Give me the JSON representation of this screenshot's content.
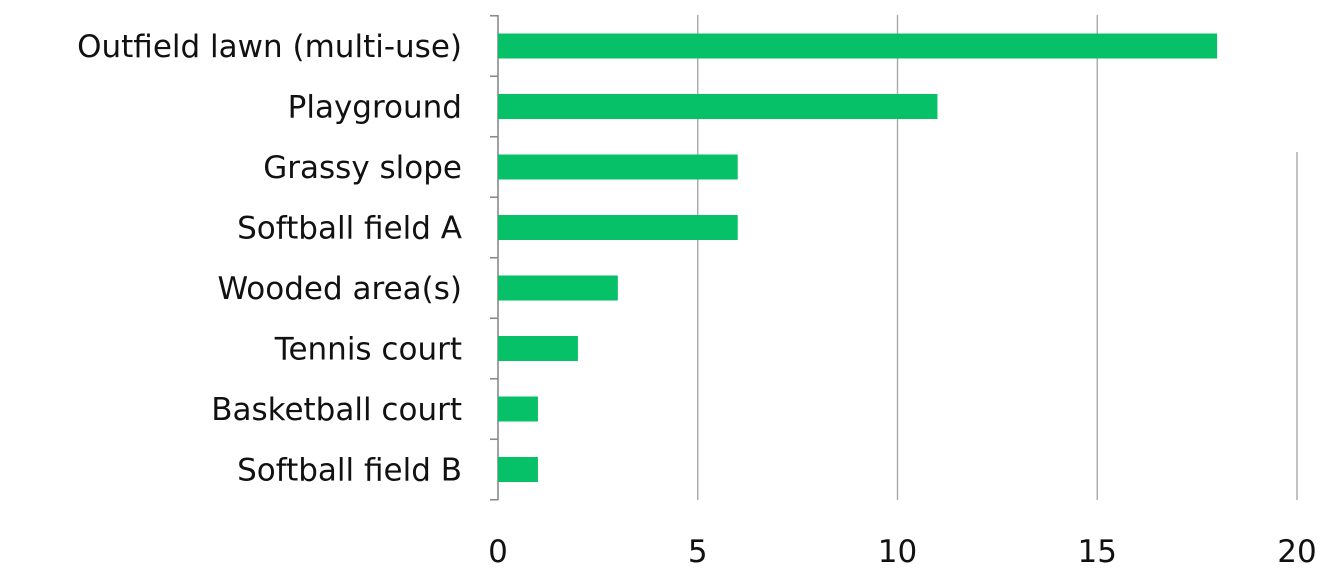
{
  "chart_data": {
    "type": "bar",
    "orientation": "horizontal",
    "title": "",
    "xlabel": "",
    "ylabel": "",
    "categories": [
      "Outfield lawn (multi-use)",
      "Playground",
      "Grassy slope",
      "Softball field A",
      "Wooded area(s)",
      "Tennis court",
      "Basketball court",
      "Softball field B"
    ],
    "values": [
      18,
      11,
      6,
      6,
      3,
      2,
      1,
      1
    ],
    "xlim": [
      0,
      20
    ],
    "xticks": [
      0,
      5,
      10,
      15,
      20
    ],
    "grid": "vertical",
    "legend": "none",
    "colors": {
      "bar": "#06c167",
      "grid": "#a8a8a8",
      "axis": "#8a8a8a",
      "text": "#111111"
    }
  }
}
